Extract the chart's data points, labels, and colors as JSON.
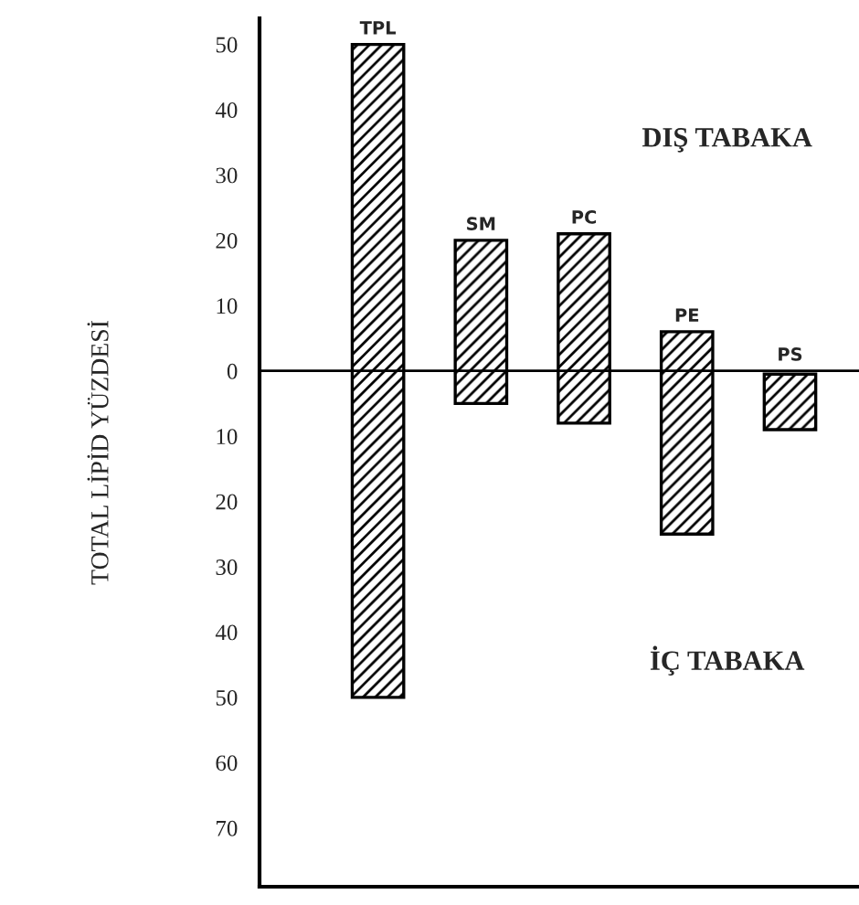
{
  "chart_data": {
    "type": "bar",
    "ylabel": "TOTAL LİPİD YÜZDESİ",
    "categories": [
      "TPL",
      "SM",
      "PC",
      "PE",
      "PS"
    ],
    "base": [
      -50,
      -5,
      -8,
      -25,
      -9
    ],
    "values": [
      100,
      25,
      29,
      31,
      8.5
    ],
    "color": "#000000",
    "ylim": [
      -79,
      54
    ],
    "yticks": [
      {
        "value": 50,
        "label": "50"
      },
      {
        "value": 40,
        "label": "40"
      },
      {
        "value": 30,
        "label": "30"
      },
      {
        "value": 20,
        "label": "20"
      },
      {
        "value": 10,
        "label": "10"
      },
      {
        "value": 0,
        "label": "0"
      },
      {
        "value": -10,
        "label": "10"
      },
      {
        "value": -20,
        "label": "20"
      },
      {
        "value": -30,
        "label": "30"
      },
      {
        "value": -40,
        "label": "40"
      },
      {
        "value": -50,
        "label": "50"
      },
      {
        "value": -60,
        "label": "60"
      },
      {
        "value": -70,
        "label": "70"
      }
    ],
    "ref_lines": [
      {
        "axis": "y",
        "value": 0,
        "color": "#000000"
      }
    ],
    "annotations": [
      "DIŞ TABAKA",
      "İÇ TABAKA"
    ],
    "tick_labels": "y",
    "grid": false,
    "legend": false
  }
}
